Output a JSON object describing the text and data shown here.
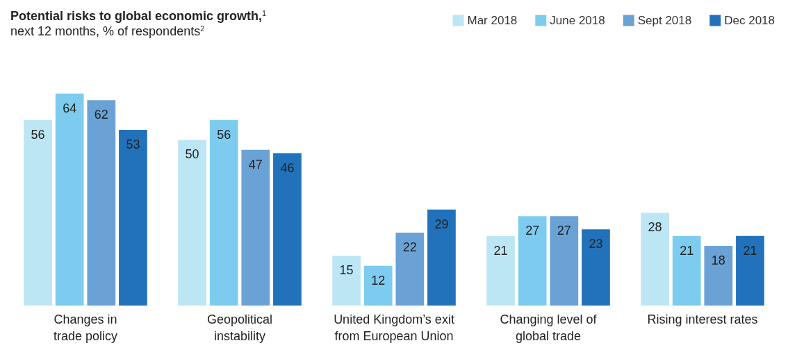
{
  "chart_data": {
    "type": "bar",
    "title": "Potential risks to global economic growth,$^{1}$",
    "subtitle": "next 12 months, % of respondents$^{2}$",
    "categories": [
      "Changes in\ntrade policy",
      "Geopolitical\ninstability",
      "United Kingdom’s exit\nfrom European Union",
      "Changing level of\nglobal trade",
      "Rising interest rates"
    ],
    "series": [
      {
        "name": "Mar 2018",
        "color": "#bde6f5",
        "values": [
          56,
          50,
          15,
          21,
          28
        ]
      },
      {
        "name": "June 2018",
        "color": "#7dccf0",
        "values": [
          64,
          56,
          12,
          27,
          21
        ]
      },
      {
        "name": "Sept 2018",
        "color": "#6aa2d6",
        "values": [
          62,
          47,
          22,
          27,
          18
        ]
      },
      {
        "name": "Dec 2018",
        "color": "#2272bb",
        "values": [
          53,
          46,
          29,
          23,
          21
        ]
      }
    ],
    "data_labels": true,
    "legend": "top right",
    "grid": false
  }
}
